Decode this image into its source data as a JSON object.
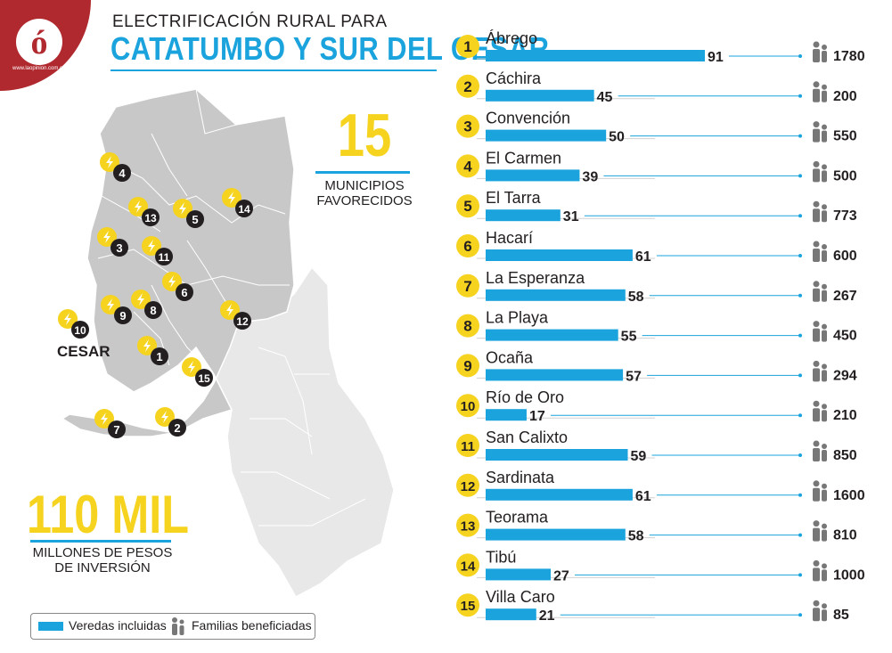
{
  "logo": {
    "letter": "ó",
    "url_text": "www.laopinion.com.co"
  },
  "title": {
    "line1": "ELECTRIFICACIÓN RURAL PARA",
    "line2": "CATATUMBO Y SUR DEL CESAR"
  },
  "highlights": {
    "municipios_number": "15",
    "municipios_label_1": "MUNICIPIOS",
    "municipios_label_2": "FAVORECIDOS",
    "inversion_number": "110 MIL",
    "inversion_label_1": "MILLONES DE PESOS",
    "inversion_label_2": "DE INVERSIÓN"
  },
  "map": {
    "cesar_label": "CESAR",
    "markers": [
      "1",
      "2",
      "3",
      "4",
      "5",
      "6",
      "7",
      "8",
      "9",
      "10",
      "11",
      "12",
      "13",
      "14",
      "15"
    ]
  },
  "legend": {
    "veredas": "Veredas  incluidas",
    "familias": "Familias beneficiadas"
  },
  "colors": {
    "bar": "#1aa3dc",
    "badge": "#f5d31f",
    "logo": "#b0292f",
    "map_main": "#c8c8c8",
    "map_cesar": "#e8e8e8"
  },
  "chart_data": {
    "type": "bar",
    "orientation": "horizontal",
    "title": "",
    "categories": [
      "Ábrego",
      "Cáchira",
      "Convención",
      "El Carmen",
      "El Tarra",
      "Hacarí",
      "La Esperanza",
      "La Playa",
      "Ocaña",
      "Río de Oro",
      "San Calixto",
      "Sardinata",
      "Teorama",
      "Tibú",
      "Villa Caro"
    ],
    "ranks": [
      "1",
      "2",
      "3",
      "4",
      "5",
      "6",
      "7",
      "8",
      "9",
      "10",
      "11",
      "12",
      "13",
      "14",
      "15"
    ],
    "series": [
      {
        "name": "Veredas  incluidas",
        "values": [
          91,
          45,
          50,
          39,
          31,
          61,
          58,
          55,
          57,
          17,
          59,
          61,
          58,
          27,
          21
        ]
      },
      {
        "name": "Familias beneficiadas",
        "values": [
          1780,
          200,
          550,
          500,
          773,
          600,
          267,
          450,
          294,
          210,
          850,
          1600,
          810,
          1000,
          85
        ]
      }
    ],
    "xlim": [
      0,
      91
    ],
    "legend": "bottom-left",
    "grid": false
  }
}
